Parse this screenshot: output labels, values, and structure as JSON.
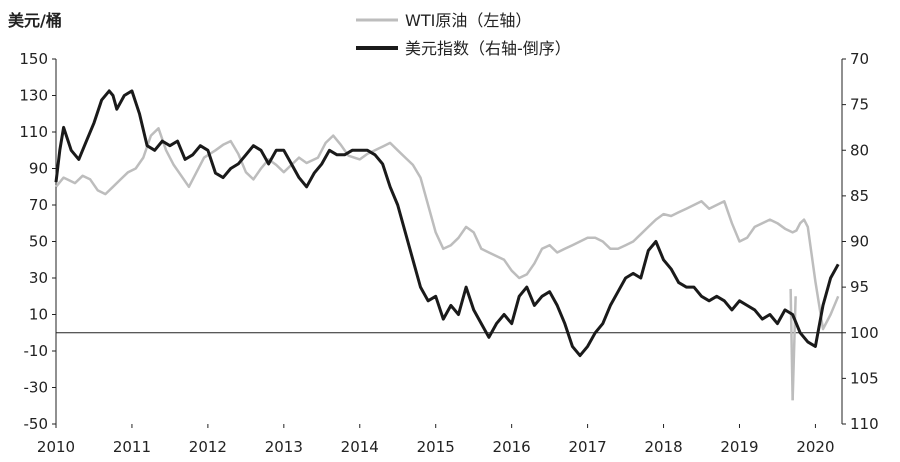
{
  "chart_data": {
    "type": "line",
    "title": "",
    "left_axis": {
      "unit_label": "美元/桶",
      "range": [
        -50,
        150
      ],
      "ticks": [
        150,
        130,
        110,
        90,
        70,
        50,
        30,
        10,
        -10,
        -30,
        -50
      ]
    },
    "right_axis": {
      "range": [
        70,
        110
      ],
      "inverted": true,
      "ticks": [
        70,
        75,
        80,
        85,
        90,
        95,
        100,
        105,
        110
      ]
    },
    "x_axis": {
      "range": [
        2010,
        2020.35
      ],
      "ticks": [
        2010,
        2011,
        2012,
        2013,
        2014,
        2015,
        2016,
        2017,
        2018,
        2019,
        2020
      ]
    },
    "zero_line": 0,
    "legend": [
      {
        "name": "WTI原油（左轴）",
        "color": "#bdbdbd"
      },
      {
        "name": "美元指数（右轴-倒序）",
        "color": "#1a1a1a"
      }
    ],
    "series": [
      {
        "name": "WTI原油（左轴）",
        "axis": "left",
        "color": "#bdbdbd",
        "x": [
          2010.0,
          2010.1,
          2010.25,
          2010.35,
          2010.45,
          2010.55,
          2010.65,
          2010.75,
          2010.85,
          2010.95,
          2011.05,
          2011.15,
          2011.25,
          2011.35,
          2011.45,
          2011.55,
          2011.65,
          2011.75,
          2011.85,
          2011.95,
          2012.1,
          2012.2,
          2012.3,
          2012.4,
          2012.5,
          2012.6,
          2012.7,
          2012.8,
          2012.9,
          2013.0,
          2013.1,
          2013.2,
          2013.3,
          2013.45,
          2013.55,
          2013.65,
          2013.75,
          2013.85,
          2014.0,
          2014.1,
          2014.2,
          2014.3,
          2014.4,
          2014.5,
          2014.6,
          2014.7,
          2014.8,
          2014.9,
          2015.0,
          2015.1,
          2015.2,
          2015.3,
          2015.4,
          2015.5,
          2015.6,
          2015.7,
          2015.8,
          2015.9,
          2016.0,
          2016.1,
          2016.2,
          2016.3,
          2016.4,
          2016.5,
          2016.6,
          2016.7,
          2016.8,
          2016.9,
          2017.0,
          2017.1,
          2017.2,
          2017.3,
          2017.4,
          2017.5,
          2017.6,
          2017.7,
          2017.8,
          2017.9,
          2018.0,
          2018.1,
          2018.2,
          2018.3,
          2018.4,
          2018.5,
          2018.6,
          2018.7,
          2018.8,
          2018.9,
          2019.0,
          2019.1,
          2019.2,
          2019.3,
          2019.4,
          2019.5,
          2019.6,
          2019.7,
          2019.75,
          2019.8,
          2019.85,
          2019.9,
          2020.0,
          2020.1,
          2020.2,
          2020.3
        ],
        "y": [
          80,
          85,
          82,
          86,
          84,
          78,
          76,
          80,
          84,
          88,
          90,
          96,
          108,
          112,
          100,
          92,
          86,
          80,
          88,
          96,
          100,
          103,
          105,
          98,
          88,
          84,
          90,
          95,
          92,
          88,
          92,
          96,
          93,
          96,
          104,
          108,
          103,
          97,
          95,
          98,
          100,
          102,
          104,
          100,
          96,
          92,
          85,
          70,
          55,
          46,
          48,
          52,
          58,
          55,
          46,
          44,
          42,
          40,
          34,
          30,
          32,
          38,
          46,
          48,
          44,
          46,
          48,
          50,
          52,
          52,
          50,
          46,
          46,
          48,
          50,
          54,
          58,
          62,
          65,
          64,
          66,
          68,
          70,
          72,
          68,
          70,
          72,
          60,
          50,
          52,
          58,
          60,
          62,
          60,
          57,
          55,
          56,
          60,
          62,
          58,
          28,
          2,
          10,
          20
        ],
        "spikes": [
          {
            "x": 2019.7,
            "y": -37
          }
        ]
      },
      {
        "name": "美元指数（右轴-倒序）",
        "axis": "right",
        "color": "#1a1a1a",
        "x": [
          2010.0,
          2010.05,
          2010.1,
          2010.2,
          2010.3,
          2010.4,
          2010.5,
          2010.6,
          2010.7,
          2010.75,
          2010.8,
          2010.9,
          2011.0,
          2011.1,
          2011.2,
          2011.3,
          2011.4,
          2011.5,
          2011.6,
          2011.7,
          2011.8,
          2011.9,
          2012.0,
          2012.1,
          2012.2,
          2012.3,
          2012.4,
          2012.5,
          2012.6,
          2012.7,
          2012.8,
          2012.9,
          2013.0,
          2013.1,
          2013.2,
          2013.3,
          2013.4,
          2013.5,
          2013.6,
          2013.7,
          2013.8,
          2013.9,
          2014.0,
          2014.1,
          2014.2,
          2014.3,
          2014.4,
          2014.5,
          2014.6,
          2014.7,
          2014.8,
          2014.9,
          2015.0,
          2015.1,
          2015.2,
          2015.3,
          2015.4,
          2015.5,
          2015.6,
          2015.7,
          2015.8,
          2015.9,
          2016.0,
          2016.1,
          2016.2,
          2016.3,
          2016.4,
          2016.5,
          2016.6,
          2016.7,
          2016.8,
          2016.9,
          2017.0,
          2017.1,
          2017.2,
          2017.3,
          2017.4,
          2017.5,
          2017.6,
          2017.7,
          2017.8,
          2017.9,
          2018.0,
          2018.1,
          2018.2,
          2018.3,
          2018.4,
          2018.5,
          2018.6,
          2018.7,
          2018.8,
          2018.9,
          2019.0,
          2019.1,
          2019.2,
          2019.3,
          2019.4,
          2019.5,
          2019.6,
          2019.7,
          2019.8,
          2019.9,
          2020.0,
          2020.1,
          2020.2,
          2020.3
        ],
        "y": [
          83.5,
          80.0,
          77.5,
          80.0,
          81.0,
          79.0,
          77.0,
          74.5,
          73.5,
          74.0,
          75.5,
          74.0,
          73.5,
          76.0,
          79.5,
          80.0,
          79.0,
          79.5,
          79.0,
          81.0,
          80.5,
          79.5,
          80.0,
          82.5,
          83.0,
          82.0,
          81.5,
          80.5,
          79.5,
          80.0,
          81.5,
          80.0,
          80.0,
          81.5,
          83.0,
          84.0,
          82.5,
          81.5,
          80.0,
          80.5,
          80.5,
          80.0,
          80.0,
          80.0,
          80.5,
          81.5,
          84.0,
          86.0,
          89.0,
          92.0,
          95.0,
          96.5,
          96.0,
          98.5,
          97.0,
          98.0,
          95.0,
          97.5,
          99.0,
          100.5,
          99.0,
          98.0,
          99.0,
          96.0,
          95.0,
          97.0,
          96.0,
          95.5,
          97.0,
          99.0,
          101.5,
          102.5,
          101.5,
          100.0,
          99.0,
          97.0,
          95.5,
          94.0,
          93.5,
          94.0,
          91.0,
          90.0,
          92.0,
          93.0,
          94.5,
          95.0,
          95.0,
          96.0,
          96.5,
          96.0,
          96.5,
          97.5,
          96.5,
          97.0,
          97.5,
          98.5,
          98.0,
          99.0,
          97.5,
          98.0,
          100.0,
          101.0,
          101.5,
          97.0,
          94.0,
          92.5
        ]
      }
    ]
  }
}
